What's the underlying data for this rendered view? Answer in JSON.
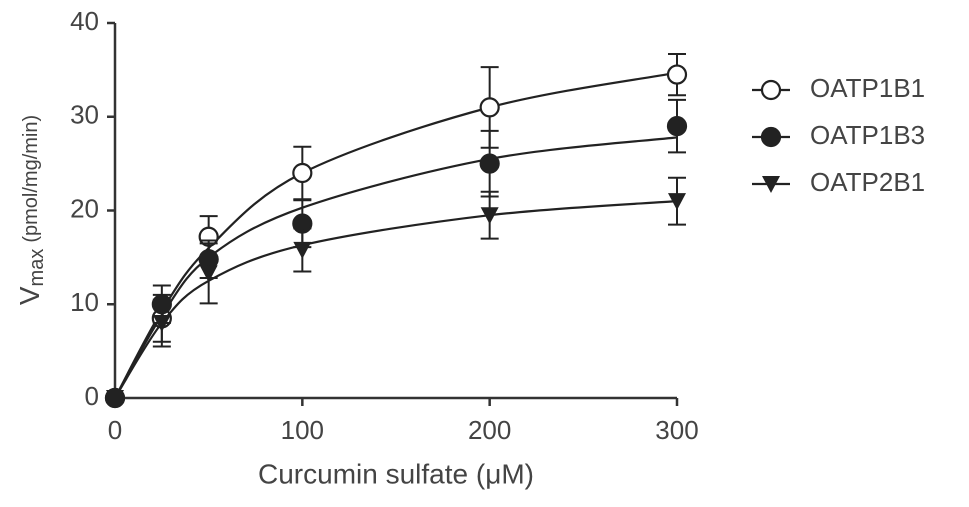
{
  "chart_data": {
    "type": "scatter",
    "x_label": "Curcumin sulfate (μM)",
    "y_label": "V",
    "y_label_sub": "max",
    "y_label_unit": "(pmol/mg/min)",
    "x": [
      0,
      25,
      50,
      100,
      200,
      300
    ],
    "series": [
      {
        "name": "OATP1B1",
        "color": "#222222",
        "marker": "open-circle",
        "values": [
          0,
          8.5,
          17.2,
          24,
          31,
          34.5
        ],
        "errors": [
          0,
          2.5,
          2.2,
          2.8,
          4.3,
          2.2
        ],
        "fit": [
          0,
          9.3,
          16,
          24,
          31,
          34.7
        ]
      },
      {
        "name": "OATP1B3",
        "color": "#222222",
        "marker": "circle",
        "values": [
          0,
          10,
          14.8,
          18.6,
          25,
          29
        ],
        "errors": [
          0,
          2,
          2,
          2.5,
          3.5,
          2.8
        ],
        "fit": [
          0,
          8.8,
          15,
          20.3,
          25.5,
          27.8
        ]
      },
      {
        "name": "OATP2B1",
        "color": "#222222",
        "marker": "triangle-down",
        "values": [
          0,
          8,
          13.3,
          15.8,
          19.5,
          21
        ],
        "errors": [
          0,
          2.5,
          3.2,
          2.3,
          2.5,
          2.5
        ],
        "fit": [
          0,
          8,
          12.5,
          16.3,
          19.5,
          21
        ]
      }
    ],
    "xlim": [
      0,
      300
    ],
    "xticks": [
      0,
      100,
      200,
      300
    ],
    "ylim": [
      0,
      40
    ],
    "yticks": [
      0,
      10,
      20,
      30,
      40
    ],
    "legend": "right"
  }
}
